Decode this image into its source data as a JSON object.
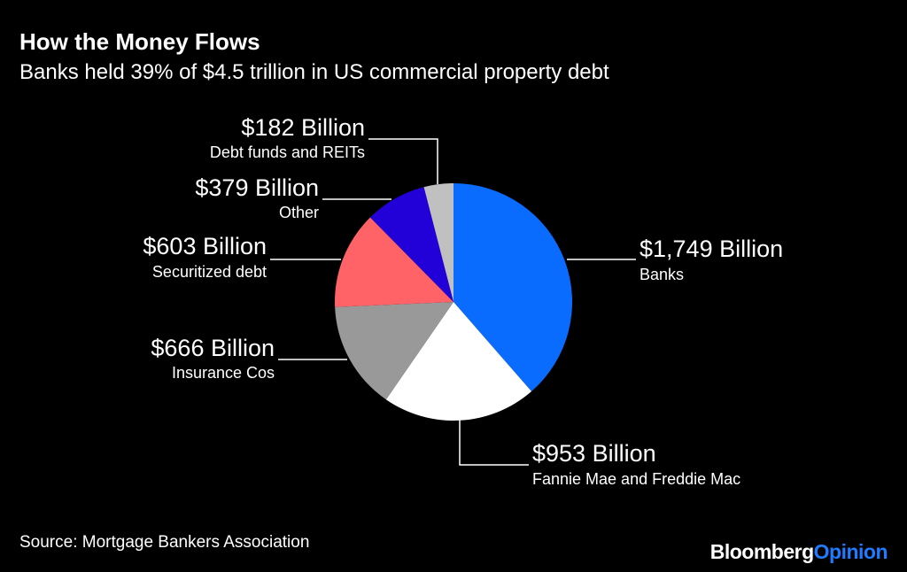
{
  "chart_data": {
    "type": "pie",
    "title": "How the Money Flows",
    "subtitle": "Banks held 39% of $4.5 trillion in US commercial property debt",
    "slices": [
      {
        "label": "Banks",
        "value_label": "$1,749 Billion",
        "value": 1749,
        "color": "#0a6cff"
      },
      {
        "label": "Fannie Mae and Freddie Mac",
        "value_label": "$953 Billion",
        "value": 953,
        "color": "#ffffff"
      },
      {
        "label": "Insurance Cos",
        "value_label": "$666 Billion",
        "value": 666,
        "color": "#999999"
      },
      {
        "label": "Securitized debt",
        "value_label": "$603 Billion",
        "value": 603,
        "color": "#ff6368"
      },
      {
        "label": "Other",
        "value_label": "$379 Billion",
        "value": 379,
        "color": "#2200d8"
      },
      {
        "label": "Debt funds and REITs",
        "value_label": "$182 Billion",
        "value": 182,
        "color": "#c0c0c0"
      }
    ]
  },
  "source": "Source: Mortgage Bankers Association",
  "brand": {
    "part1": "Bloomberg",
    "part2": "Opinion"
  }
}
